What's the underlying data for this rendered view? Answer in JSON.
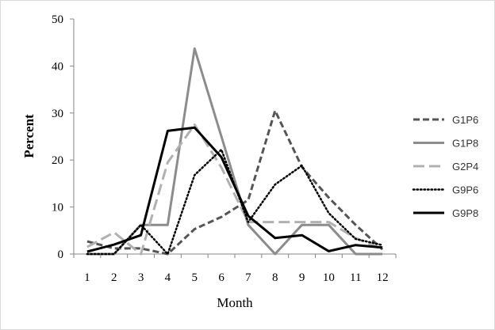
{
  "chart_data": {
    "type": "line",
    "xlabel": "Month",
    "ylabel": "Percent",
    "x": [
      1,
      2,
      3,
      4,
      5,
      6,
      7,
      8,
      9,
      10,
      11,
      12
    ],
    "xlim": [
      0.5,
      12.5
    ],
    "ylim": [
      0,
      50
    ],
    "yticks": [
      0,
      10,
      20,
      30,
      40,
      50
    ],
    "grid": false,
    "legend_position": "right",
    "series": [
      {
        "name": "G1P6",
        "color": "#555555",
        "dash": "dashed",
        "values": [
          2.7,
          1.2,
          1.2,
          0,
          5.3,
          7.9,
          11.5,
          30.5,
          18.5,
          12,
          6.2,
          1
        ]
      },
      {
        "name": "G1P8",
        "color": "#8c8c8c",
        "dash": "solid",
        "values": [
          0,
          0,
          6.2,
          6.2,
          43.7,
          25,
          6.2,
          0,
          6.2,
          6.2,
          0,
          0
        ]
      },
      {
        "name": "G2P4",
        "color": "#b0b0b0",
        "dash": "longdash",
        "values": [
          1.5,
          4.6,
          0,
          19.5,
          27.5,
          18.4,
          6.8,
          6.8,
          6.8,
          6.8,
          3.4,
          1
        ]
      },
      {
        "name": "G9P6",
        "color": "#000000",
        "dash": "dotted",
        "values": [
          0,
          0,
          6.2,
          0,
          16.8,
          22.2,
          6.8,
          14.8,
          18.8,
          8.7,
          3.2,
          1.9
        ]
      },
      {
        "name": "G9P8",
        "color": "#000000",
        "dash": "solid",
        "values": [
          0.5,
          2,
          4,
          26.2,
          26.9,
          20.6,
          8.1,
          3.4,
          4,
          0.6,
          1.9,
          1.4
        ]
      }
    ]
  }
}
